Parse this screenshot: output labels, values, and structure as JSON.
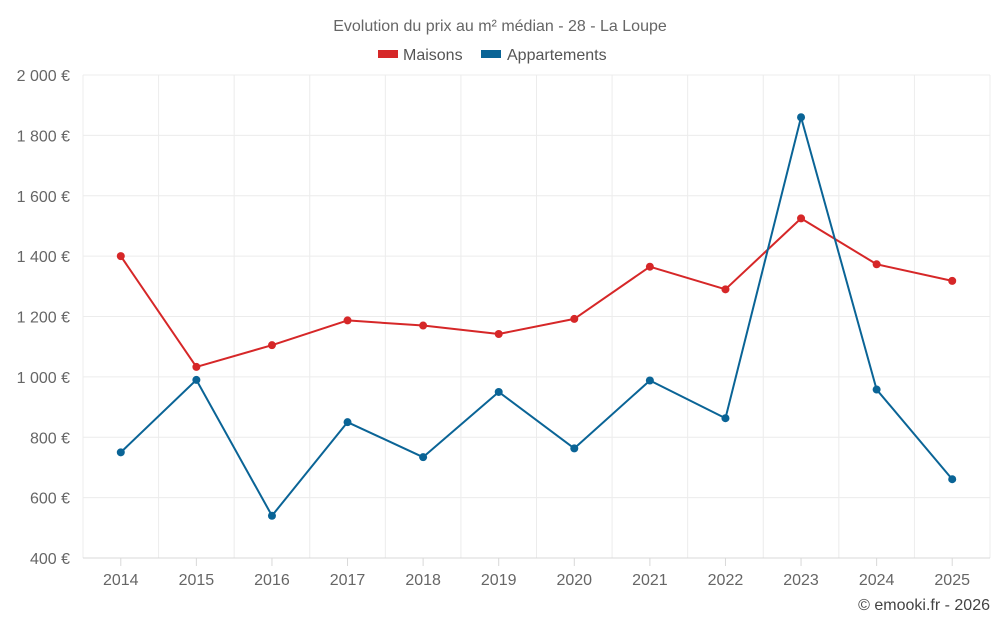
{
  "chart_data": {
    "type": "line",
    "title": "Evolution du prix au m² médian - 28 - La Loupe",
    "categories": [
      "2014",
      "2015",
      "2016",
      "2017",
      "2018",
      "2019",
      "2020",
      "2021",
      "2022",
      "2023",
      "2024",
      "2025"
    ],
    "series": [
      {
        "name": "Maisons",
        "color": "#d62728",
        "values": [
          1400,
          1033,
          1105,
          1187,
          1170,
          1142,
          1192,
          1365,
          1290,
          1525,
          1373,
          1318
        ]
      },
      {
        "name": "Appartements",
        "color": "#0a6496",
        "values": [
          750,
          990,
          540,
          850,
          734,
          950,
          763,
          988,
          863,
          1860,
          958,
          661
        ]
      }
    ],
    "ylim": [
      400,
      2000
    ],
    "yticks": [
      400,
      600,
      800,
      1000,
      1200,
      1400,
      1600,
      1800,
      2000
    ],
    "ytick_labels": [
      "400 €",
      "600 €",
      "800 €",
      "1 000 €",
      "1 200 €",
      "1 400 €",
      "1 600 €",
      "1 800 €",
      "2 000 €"
    ],
    "grid": true,
    "legend_position": "top-center",
    "credit": "© emooki.fr - 2026"
  }
}
